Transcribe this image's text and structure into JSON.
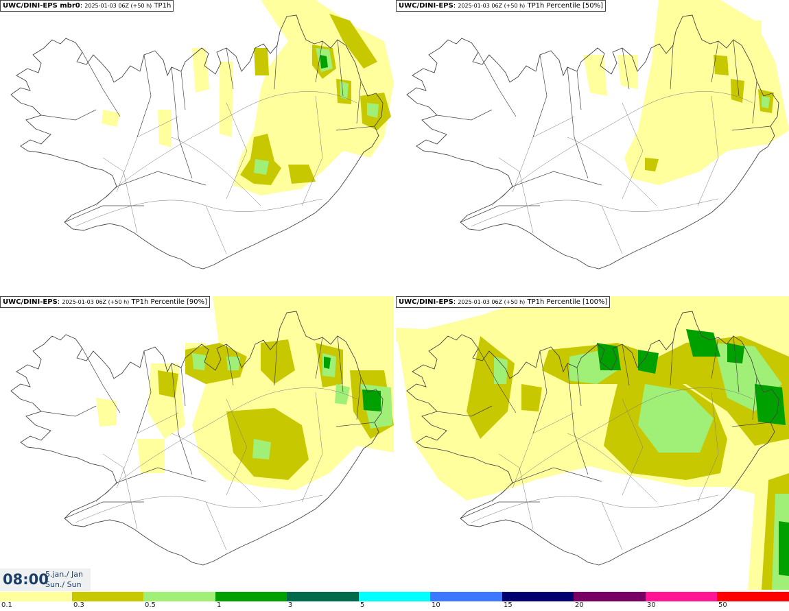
{
  "panels": [
    {
      "model": "UWC/DINI-EPS mbr0",
      "meta": "2025-01-03 06Z (+50 h)",
      "field": "TP1h"
    },
    {
      "model": "UWC/DINI-EPS",
      "meta": "2025-01-03 06Z (+50 h)",
      "field": "TP1h Percentile [50%]"
    },
    {
      "model": "UWC/DINI-EPS",
      "meta": "2025-01-03 06Z (+50 h)",
      "field": "TP1h Percentile [90%]"
    },
    {
      "model": "UWC/DINI-EPS",
      "meta": "2025-01-03 06Z (+50 h)",
      "field": "TP1h Percentile [100%]"
    }
  ],
  "valid_time": {
    "clock": "08:00",
    "date_line": "5.jan./ Jan",
    "day_line": "Sun./ Sun"
  },
  "legend": {
    "ticks": [
      "0.1",
      "0.3",
      "0.5",
      "1",
      "3",
      "5",
      "10",
      "15",
      "20",
      "30",
      "50"
    ],
    "colors": [
      "#ffff9e",
      "#c8c800",
      "#a0f078",
      "#00a000",
      "#006a4a",
      "#00ffff",
      "#3c78ff",
      "#00006e",
      "#780064",
      "#ff1493",
      "#ff0000"
    ]
  },
  "map_colors": {
    "c1": "#ffff9e",
    "c2": "#c8c800",
    "c3": "#a0f078",
    "c4": "#00a000",
    "coast": "#444444"
  }
}
